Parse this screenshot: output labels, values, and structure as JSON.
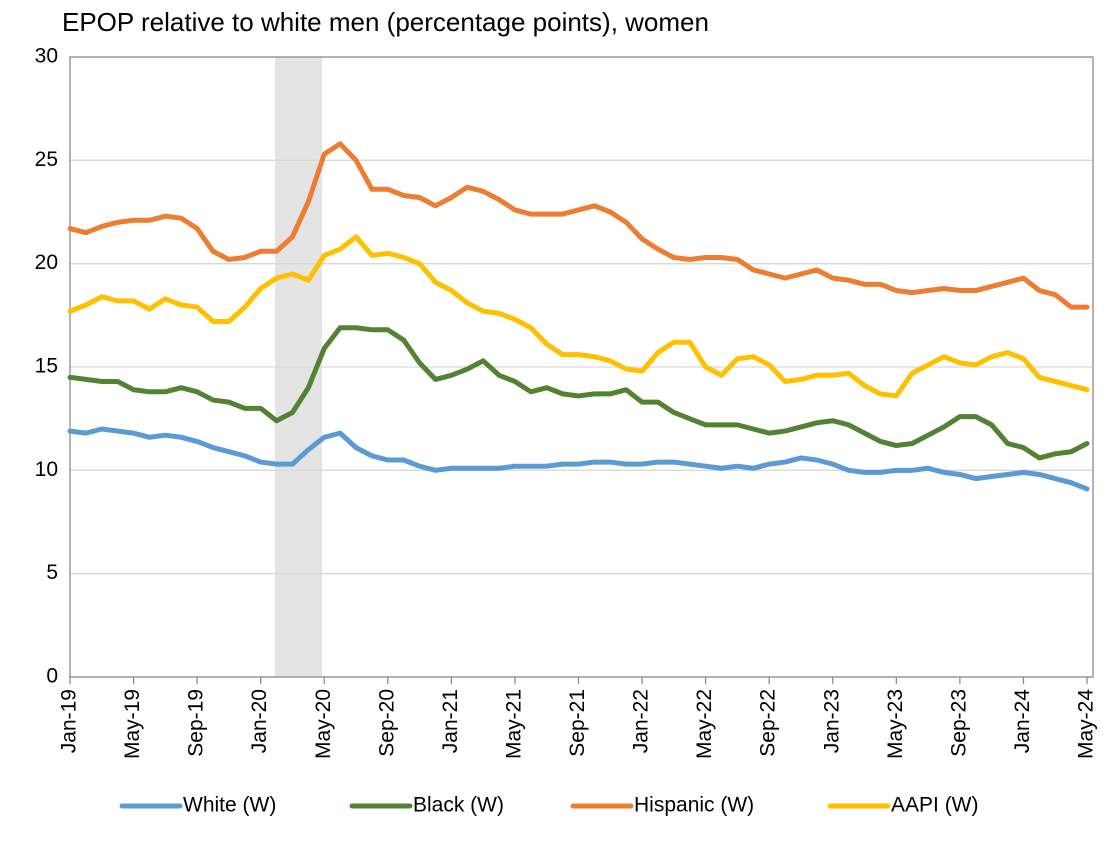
{
  "chart_data": {
    "type": "line",
    "title": "EPOP relative to white men (percentage points), women",
    "categories": [
      "Jan-19",
      null,
      null,
      null,
      "May-19",
      null,
      null,
      null,
      "Sep-19",
      null,
      null,
      null,
      "Jan-20",
      null,
      null,
      null,
      "May-20",
      null,
      null,
      null,
      "Sep-20",
      null,
      null,
      null,
      "Jan-21",
      null,
      null,
      null,
      "May-21",
      null,
      null,
      null,
      "Sep-21",
      null,
      null,
      null,
      "Jan-22",
      null,
      null,
      null,
      "May-22",
      null,
      null,
      null,
      "Sep-22",
      null,
      null,
      null,
      "Jan-23",
      null,
      null,
      null,
      "May-23",
      null,
      null,
      null,
      "Sep-23",
      null,
      null,
      null,
      "Jan-24",
      null,
      null,
      null,
      "May-24"
    ],
    "series": [
      {
        "name": "White (W)",
        "color": "#5b9bd5",
        "values": [
          11.9,
          11.8,
          12.0,
          11.9,
          11.8,
          11.6,
          11.7,
          11.6,
          11.4,
          11.1,
          10.9,
          10.7,
          10.4,
          10.3,
          10.3,
          11.0,
          11.6,
          11.8,
          11.1,
          10.7,
          10.5,
          10.5,
          10.2,
          10.0,
          10.1,
          10.1,
          10.1,
          10.1,
          10.2,
          10.2,
          10.2,
          10.3,
          10.3,
          10.4,
          10.4,
          10.3,
          10.3,
          10.4,
          10.4,
          10.3,
          10.2,
          10.1,
          10.2,
          10.1,
          10.3,
          10.4,
          10.6,
          10.5,
          10.3,
          10.0,
          9.9,
          9.9,
          10.0,
          10.0,
          10.1,
          9.9,
          9.8,
          9.6,
          9.7,
          9.8,
          9.9,
          9.8,
          9.6,
          9.4,
          9.1
        ]
      },
      {
        "name": "Black (W)",
        "color": "#548235",
        "values": [
          14.5,
          14.4,
          14.3,
          14.3,
          13.9,
          13.8,
          13.8,
          14.0,
          13.8,
          13.4,
          13.3,
          13.0,
          13.0,
          12.4,
          12.8,
          14.0,
          15.9,
          16.9,
          16.9,
          16.8,
          16.8,
          16.3,
          15.2,
          14.4,
          14.6,
          14.9,
          15.3,
          14.6,
          14.3,
          13.8,
          14.0,
          13.7,
          13.6,
          13.7,
          13.7,
          13.9,
          13.3,
          13.3,
          12.8,
          12.5,
          12.2,
          12.2,
          12.2,
          12.0,
          11.8,
          11.9,
          12.1,
          12.3,
          12.4,
          12.2,
          11.8,
          11.4,
          11.2,
          11.3,
          11.7,
          12.1,
          12.6,
          12.6,
          12.2,
          11.3,
          11.1,
          10.6,
          10.8,
          10.9,
          11.3
        ]
      },
      {
        "name": "Hispanic (W)",
        "color": "#ed7d31",
        "values": [
          21.7,
          21.5,
          21.8,
          22.0,
          22.1,
          22.1,
          22.3,
          22.2,
          21.7,
          20.6,
          20.2,
          20.3,
          20.6,
          20.6,
          21.3,
          23.0,
          25.3,
          25.8,
          25.0,
          23.6,
          23.6,
          23.3,
          23.2,
          22.8,
          23.2,
          23.7,
          23.5,
          23.1,
          22.6,
          22.4,
          22.4,
          22.4,
          22.6,
          22.8,
          22.5,
          22.0,
          21.2,
          20.7,
          20.3,
          20.2,
          20.3,
          20.3,
          20.2,
          19.7,
          19.5,
          19.3,
          19.5,
          19.7,
          19.3,
          19.2,
          19.0,
          19.0,
          18.7,
          18.6,
          18.7,
          18.8,
          18.7,
          18.7,
          18.9,
          19.1,
          19.3,
          18.7,
          18.5,
          17.9,
          17.9
        ]
      },
      {
        "name": "AAPI (W)",
        "color": "#ffc000",
        "values": [
          17.7,
          18.0,
          18.4,
          18.2,
          18.2,
          17.8,
          18.3,
          18.0,
          17.9,
          17.2,
          17.2,
          17.9,
          18.8,
          19.3,
          19.5,
          19.2,
          20.4,
          20.7,
          21.3,
          20.4,
          20.5,
          20.3,
          20.0,
          19.1,
          18.7,
          18.1,
          17.7,
          17.6,
          17.3,
          16.9,
          16.1,
          15.6,
          15.6,
          15.5,
          15.3,
          14.9,
          14.8,
          15.7,
          16.2,
          16.2,
          15.0,
          14.6,
          15.4,
          15.5,
          15.1,
          14.3,
          14.4,
          14.6,
          14.6,
          14.7,
          14.1,
          13.7,
          13.6,
          14.7,
          15.1,
          15.5,
          15.2,
          15.1,
          15.5,
          15.7,
          15.4,
          14.5,
          14.3,
          14.1,
          13.9
        ]
      }
    ],
    "ylim": [
      0,
      30
    ],
    "yticks": [
      0,
      5,
      10,
      15,
      20,
      25,
      30
    ],
    "grid": true
  }
}
